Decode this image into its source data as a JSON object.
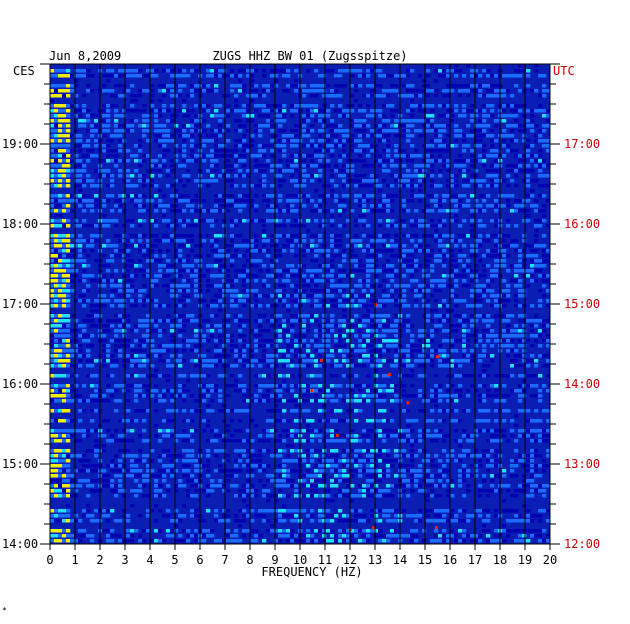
{
  "header": {
    "date": "Jun 8,2009",
    "station": "ZUGS HHZ BW 01 (Zugsspitze)"
  },
  "corner_marker": "*",
  "chart_data": {
    "type": "heatmap",
    "title": "ZUGS HHZ BW 01 (Zugsspitze)",
    "subtitle": "Jun 8,2009",
    "xlabel": "FREQUENCY (HZ)",
    "xlim": [
      0,
      20
    ],
    "x_ticks": [
      "0",
      "1",
      "2",
      "3",
      "4",
      "5",
      "6",
      "7",
      "8",
      "9",
      "10",
      "11",
      "12",
      "13",
      "14",
      "15",
      "16",
      "17",
      "18",
      "19",
      "20"
    ],
    "left_axis": {
      "label": "CES",
      "ticks": [
        "19:00",
        "18:00",
        "17:00",
        "16:00",
        "15:00",
        "14:00"
      ],
      "tick_values_hours": [
        19,
        18,
        17,
        16,
        15,
        14
      ],
      "range_hours": [
        14,
        20
      ]
    },
    "right_axis": {
      "label": "UTC",
      "ticks": [
        "17:00",
        "16:00",
        "15:00",
        "14:00",
        "13:00",
        "12:00"
      ],
      "tick_values_hours": [
        17,
        16,
        15,
        14,
        13,
        12
      ],
      "range_hours": [
        12,
        18
      ]
    },
    "colors": {
      "background": "#0a1eb4",
      "low": "#0000b0",
      "mid": "#1a6cff",
      "cyan": "#20e0ff",
      "yellow": "#f0f000",
      "red": "#ff2000",
      "left_ticks": "#000000",
      "right_ticks": "#cc0000"
    },
    "grid": true
  }
}
